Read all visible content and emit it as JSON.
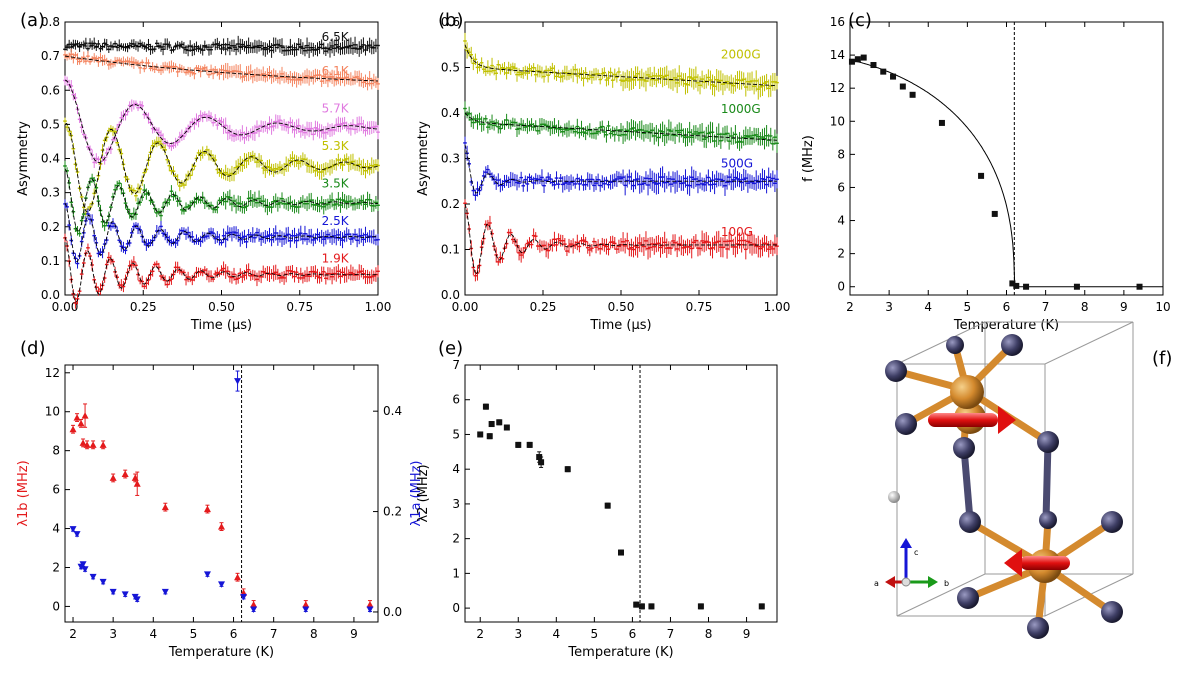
{
  "panel_labels": {
    "a": "(a)",
    "b": "(b)",
    "c": "(c)",
    "d": "(d)",
    "e": "(e)",
    "f": "(f)"
  },
  "colors": {
    "red": "#e41a1c",
    "blue": "#1515d6",
    "green": "#1a8a1a",
    "olive": "#c0c000",
    "violet": "#e07be0",
    "salmon": "#f4845f",
    "black": "#111111",
    "atom_mn": "#d48a2e",
    "atom_x": "#3f3f66",
    "moment_arrow": "#e01010"
  },
  "chart_data": [
    {
      "id": "a",
      "type": "line",
      "title": "",
      "xlabel": "Time (μs)",
      "ylabel": "Asymmetry",
      "xlim": [
        0,
        1
      ],
      "ylim": [
        0,
        0.8
      ],
      "xticks": [
        0,
        0.25,
        0.5,
        0.75,
        1.0
      ],
      "xtick_labels": [
        "0.00",
        "0.25",
        "0.50",
        "0.75",
        "1.00"
      ],
      "yticks": [
        0,
        0.1,
        0.2,
        0.3,
        0.4,
        0.5,
        0.6,
        0.7,
        0.8
      ],
      "ytick_labels": [
        "0.0",
        "0.1",
        "0.2",
        "0.3",
        "0.4",
        "0.5",
        "0.6",
        "0.7",
        "0.8"
      ],
      "series": [
        {
          "name": "6.5K",
          "color": "#111111",
          "baseline": 0.72,
          "amp": 0.01,
          "freq": 0.0,
          "damp": 1.0,
          "start": 0.73
        },
        {
          "name": "6.1K",
          "color": "#f4845f",
          "baseline": 0.6,
          "amp": 0.1,
          "freq": 0.0,
          "damp": 1.3,
          "start": 0.7
        },
        {
          "name": "5.7K",
          "color": "#e07be0",
          "baseline": 0.49,
          "amp": 0.15,
          "freq": 4.4,
          "damp": 3.5,
          "start": 0.63
        },
        {
          "name": "5.3K",
          "color": "#c0c000",
          "baseline": 0.38,
          "amp": 0.17,
          "freq": 6.7,
          "damp": 3.2,
          "start": 0.5
        },
        {
          "name": "3.5K",
          "color": "#1a8a1a",
          "baseline": 0.27,
          "amp": 0.1,
          "freq": 11.6,
          "damp": 4.0,
          "start": 0.37
        },
        {
          "name": "2.5K",
          "color": "#1515d6",
          "baseline": 0.17,
          "amp": 0.09,
          "freq": 13.1,
          "damp": 4.5,
          "start": 0.27
        },
        {
          "name": "1.9K",
          "color": "#e41a1c",
          "baseline": 0.06,
          "amp": 0.1,
          "freq": 13.8,
          "damp": 5.0,
          "start": 0.17
        }
      ]
    },
    {
      "id": "b",
      "type": "line",
      "xlabel": "Time (μs)",
      "ylabel": "Asymmetry",
      "xlim": [
        0,
        1
      ],
      "ylim": [
        0,
        0.6
      ],
      "xticks": [
        0,
        0.25,
        0.5,
        0.75,
        1.0
      ],
      "xtick_labels": [
        "0.00",
        "0.25",
        "0.50",
        "0.75",
        "1.00"
      ],
      "yticks": [
        0,
        0.1,
        0.2,
        0.3,
        0.4,
        0.5,
        0.6
      ],
      "ytick_labels": [
        "0.0",
        "0.1",
        "0.2",
        "0.3",
        "0.4",
        "0.5",
        "0.6"
      ],
      "series": [
        {
          "name": "2000G",
          "color": "#c0c000",
          "baseline": 0.48,
          "amp": 0.0,
          "freq": 0.0,
          "damp": 1.0,
          "start": 0.53
        },
        {
          "name": "1000G",
          "color": "#1a8a1a",
          "baseline": 0.36,
          "amp": 0.0,
          "freq": 0.0,
          "damp": 1.0,
          "start": 0.38
        },
        {
          "name": "500G",
          "color": "#1515d6",
          "baseline": 0.25,
          "amp": 0.06,
          "freq": 13.0,
          "damp": 18.0,
          "start": 0.33
        },
        {
          "name": "100G",
          "color": "#e41a1c",
          "baseline": 0.11,
          "amp": 0.09,
          "freq": 13.5,
          "damp": 9.0,
          "start": 0.2
        }
      ]
    },
    {
      "id": "c",
      "type": "scatter",
      "xlabel": "Temperature (K)",
      "ylabel": "f  (MHz)",
      "xlim": [
        2,
        10
      ],
      "ylim": [
        -0.5,
        16
      ],
      "xticks": [
        2,
        3,
        4,
        5,
        6,
        7,
        8,
        9,
        10
      ],
      "yticks": [
        0,
        2,
        4,
        6,
        8,
        10,
        12,
        14,
        16
      ],
      "vline": 6.2,
      "fit": {
        "f0": 14.2,
        "tc": 6.2,
        "beta": 0.4
      },
      "points": [
        [
          2.05,
          13.6
        ],
        [
          2.2,
          13.75
        ],
        [
          2.35,
          13.85
        ],
        [
          2.6,
          13.4
        ],
        [
          2.85,
          13.0
        ],
        [
          3.1,
          12.7
        ],
        [
          3.35,
          12.1
        ],
        [
          3.6,
          11.6
        ],
        [
          4.35,
          9.9
        ],
        [
          5.35,
          6.7
        ],
        [
          5.7,
          4.4
        ],
        [
          6.15,
          0.2
        ],
        [
          6.25,
          0.05
        ],
        [
          6.5,
          0.0
        ],
        [
          7.8,
          0.0
        ],
        [
          9.4,
          0.0
        ]
      ]
    },
    {
      "id": "d",
      "type": "scatter",
      "xlabel": "Temperature (K)",
      "ylabel_left": "λ1b (MHz)",
      "ylabel_right": "λ1a (MHz)",
      "xlim": [
        1.8,
        9.6
      ],
      "ylim_left": [
        -0.8,
        12.4
      ],
      "ylim_right": [
        -0.02,
        0.492
      ],
      "xticks": [
        2,
        3,
        4,
        5,
        6,
        7,
        8,
        9
      ],
      "yticks_left": [
        0,
        2,
        4,
        6,
        8,
        10,
        12
      ],
      "yticks_right": [
        0.0,
        0.2,
        0.4
      ],
      "vline": 6.2,
      "series": [
        {
          "name": "λ1b",
          "color": "#e41a1c",
          "axis": "left",
          "marker": "triangle-up",
          "points": [
            [
              2.0,
              9.1
            ],
            [
              2.1,
              9.7
            ],
            [
              2.2,
              9.4
            ],
            [
              2.25,
              8.4
            ],
            [
              2.3,
              9.8
            ],
            [
              2.35,
              8.3
            ],
            [
              2.5,
              8.3
            ],
            [
              2.75,
              8.3
            ],
            [
              3.0,
              6.6
            ],
            [
              3.3,
              6.8
            ],
            [
              3.55,
              6.6
            ],
            [
              3.6,
              6.3
            ],
            [
              4.3,
              5.1
            ],
            [
              5.35,
              5.0
            ],
            [
              5.7,
              4.1
            ],
            [
              6.1,
              1.5
            ],
            [
              6.25,
              0.7
            ],
            [
              6.5,
              0.1
            ],
            [
              7.8,
              0.1
            ],
            [
              9.4,
              0.1
            ]
          ]
        },
        {
          "name": "λ1a",
          "color": "#1515d6",
          "axis": "right",
          "marker": "triangle-down",
          "points": [
            [
              2.0,
              0.165
            ],
            [
              2.1,
              0.155
            ],
            [
              2.2,
              0.09
            ],
            [
              2.25,
              0.095
            ],
            [
              2.3,
              0.085
            ],
            [
              2.5,
              0.07
            ],
            [
              2.75,
              0.06
            ],
            [
              3.0,
              0.04
            ],
            [
              3.3,
              0.035
            ],
            [
              3.55,
              0.03
            ],
            [
              3.6,
              0.025
            ],
            [
              4.3,
              0.04
            ],
            [
              5.35,
              0.075
            ],
            [
              5.7,
              0.055
            ],
            [
              6.1,
              0.46
            ],
            [
              6.25,
              0.03
            ],
            [
              6.5,
              0.005
            ],
            [
              7.8,
              0.005
            ],
            [
              9.4,
              0.005
            ]
          ]
        }
      ]
    },
    {
      "id": "e",
      "type": "scatter",
      "xlabel": "Temperature (K)",
      "ylabel": "λ2 (MHz)",
      "xlim": [
        1.6,
        9.8
      ],
      "ylim": [
        -0.4,
        7
      ],
      "xticks": [
        2,
        3,
        4,
        5,
        6,
        7,
        8,
        9
      ],
      "yticks": [
        0,
        1,
        2,
        3,
        4,
        5,
        6,
        7
      ],
      "vline": 6.2,
      "points": [
        [
          2.0,
          5.0
        ],
        [
          2.15,
          5.8
        ],
        [
          2.25,
          4.95
        ],
        [
          2.3,
          5.3
        ],
        [
          2.5,
          5.35
        ],
        [
          2.7,
          5.2
        ],
        [
          3.0,
          4.7
        ],
        [
          3.3,
          4.7
        ],
        [
          3.55,
          4.35
        ],
        [
          3.6,
          4.2
        ],
        [
          4.3,
          4.0
        ],
        [
          5.35,
          2.95
        ],
        [
          5.7,
          1.6
        ],
        [
          6.1,
          0.1
        ],
        [
          6.25,
          0.05
        ],
        [
          6.5,
          0.05
        ],
        [
          7.8,
          0.05
        ],
        [
          9.4,
          0.05
        ]
      ]
    }
  ],
  "structure": {
    "axes_labels": {
      "a": "a",
      "b": "b",
      "c": "c"
    }
  }
}
